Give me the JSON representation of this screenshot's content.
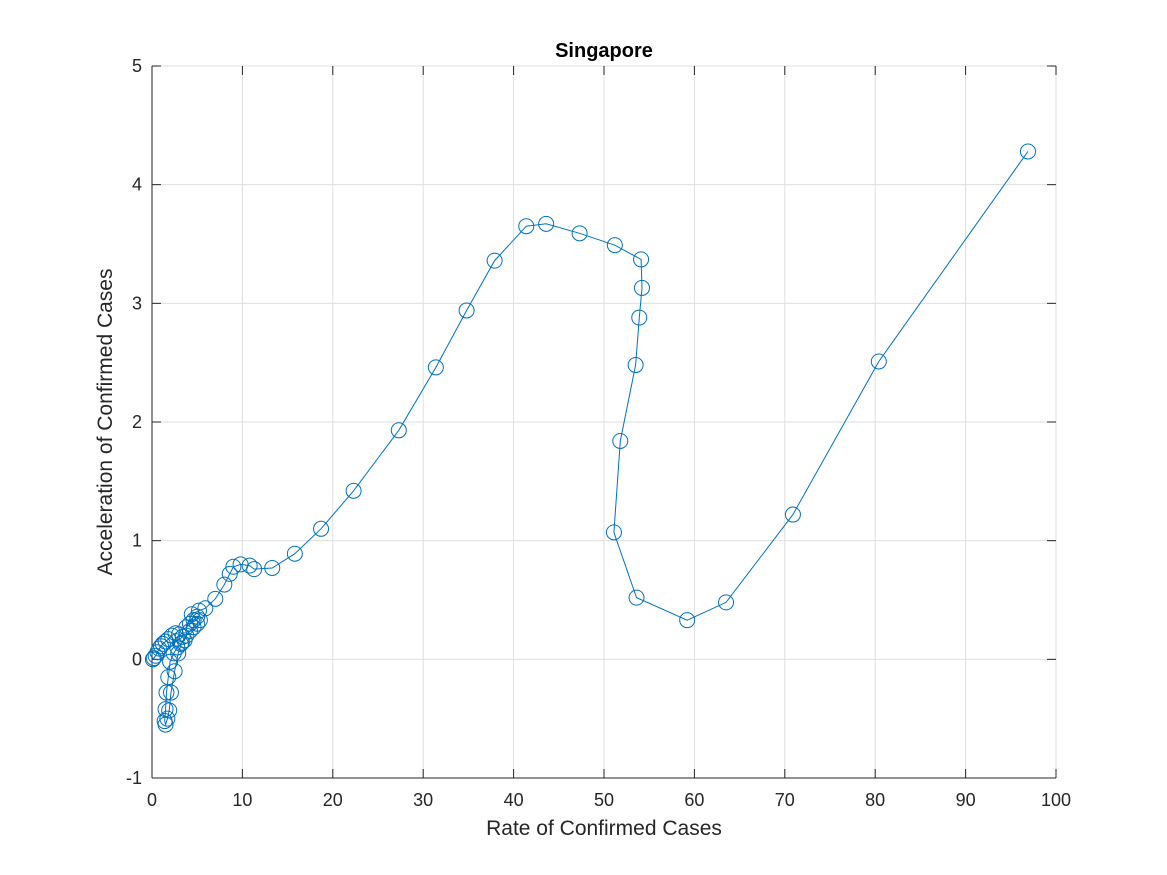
{
  "chart_data": {
    "type": "line",
    "title": "Singapore",
    "xlabel": "Rate of Confirmed Cases",
    "ylabel": "Acceleration of Confirmed Cases",
    "xlim": [
      0,
      100
    ],
    "ylim": [
      -1,
      5
    ],
    "x_ticks": [
      0,
      10,
      20,
      30,
      40,
      50,
      60,
      70,
      80,
      90,
      100
    ],
    "y_ticks": [
      -1,
      0,
      1,
      2,
      3,
      4,
      5
    ],
    "x_tick_labels": [
      "0",
      "10",
      "20",
      "30",
      "40",
      "50",
      "60",
      "70",
      "80",
      "90",
      "100"
    ],
    "y_tick_labels": [
      "-1",
      "0",
      "1",
      "2",
      "3",
      "4",
      "5"
    ],
    "grid": true,
    "marker": "circle",
    "line_color": "#0072BD",
    "series": [
      {
        "x": [
          0.1,
          0.2,
          0.4,
          0.6,
          0.8,
          1.0,
          1.2,
          1.5,
          1.8,
          2.2,
          2.6,
          3.0,
          3.4,
          3.6,
          3.2,
          2.8,
          2.4,
          2.0,
          1.8,
          1.6,
          1.5,
          1.4,
          1.5,
          1.7,
          1.9,
          2.1,
          2.5,
          2.9,
          3.3,
          3.8,
          4.2,
          4.6,
          5.0,
          5.3,
          5.0,
          4.6,
          4.2,
          3.8,
          4.4,
          5.2,
          5.9,
          7.0,
          8.0,
          8.6,
          9.0,
          9.8,
          10.8,
          11.3,
          13.3,
          15.8,
          18.7,
          22.3,
          27.3,
          31.4,
          34.8,
          37.9,
          41.4,
          43.6,
          47.3,
          51.2,
          54.1,
          54.2,
          53.9,
          53.5,
          51.8,
          51.1,
          53.6,
          59.2,
          63.5,
          70.9,
          80.4,
          96.9
        ],
        "y": [
          0.0,
          0.01,
          0.03,
          0.06,
          0.09,
          0.11,
          0.13,
          0.15,
          0.17,
          0.2,
          0.22,
          0.21,
          0.19,
          0.16,
          0.13,
          0.1,
          0.05,
          -0.02,
          -0.15,
          -0.28,
          -0.42,
          -0.52,
          -0.55,
          -0.5,
          -0.43,
          -0.28,
          -0.1,
          0.05,
          0.14,
          0.2,
          0.24,
          0.27,
          0.3,
          0.33,
          0.36,
          0.33,
          0.3,
          0.27,
          0.38,
          0.41,
          0.43,
          0.51,
          0.63,
          0.72,
          0.78,
          0.8,
          0.79,
          0.76,
          0.77,
          0.89,
          1.1,
          1.42,
          1.93,
          2.46,
          2.94,
          3.36,
          3.65,
          3.67,
          3.59,
          3.49,
          3.37,
          3.13,
          2.88,
          2.48,
          1.84,
          1.07,
          0.52,
          0.33,
          0.48,
          1.22,
          2.51,
          4.28
        ]
      }
    ]
  }
}
